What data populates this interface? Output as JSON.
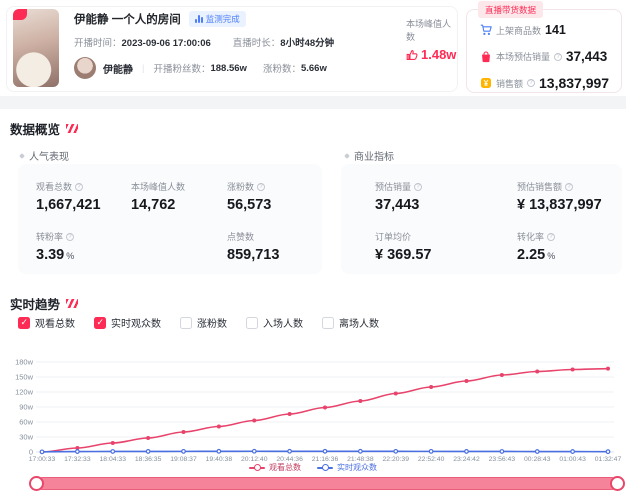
{
  "accent": {
    "red": "#fe2c55",
    "blue": "#4d7ef7",
    "chart_red": "#e8436b",
    "chart_blue": "#4a6fe0",
    "slider_pink": "#f5839a"
  },
  "header": {
    "title": "伊能静 一个人的房间",
    "monitor_badge": "监测完成",
    "start_label": "开播时间：",
    "start_value": "2023-09-06 17:00:06",
    "duration_label": "直播时长：",
    "duration_value": "8小时48分钟",
    "anchor_name": "伊能静",
    "separator": "|",
    "fans_label": "开播粉丝数：",
    "fans_value": "188.56w",
    "fans_gain_label": "涨粉数：",
    "fans_gain_value": "5.66w",
    "peak_label": "本场峰值人数",
    "peak_value": "1.48w"
  },
  "commerce": {
    "badge": "直播带货数据",
    "rows": [
      {
        "icon": "cart-icon",
        "label": "上架商品数",
        "value": "141"
      },
      {
        "icon": "bag-icon",
        "label": "本场预估销量",
        "value": "37,443"
      },
      {
        "icon": "money-icon",
        "label": "销售额",
        "value": "13,837,997"
      }
    ]
  },
  "overview": {
    "title": "数据概览",
    "popularity": {
      "subtitle": "人气表现",
      "stats": [
        {
          "label": "观看总数",
          "value": "1,667,421"
        },
        {
          "label": "本场峰值人数",
          "value": "14,762"
        },
        {
          "label": "涨粉数",
          "value": "56,573"
        },
        {
          "label": "转粉率",
          "value": "3.39",
          "suffix": "%"
        },
        {
          "label": "点赞数",
          "value": "859,713"
        }
      ]
    },
    "business": {
      "subtitle": "商业指标",
      "stats": [
        {
          "label": "预估销量",
          "value": "37,443"
        },
        {
          "label": "预估销售额",
          "value": "¥ 13,837,997"
        },
        {
          "label": "订单均价",
          "value": "¥ 369.57"
        },
        {
          "label": "转化率",
          "value": "2.25",
          "suffix": "%"
        }
      ]
    }
  },
  "trend": {
    "title": "实时趋势",
    "checkboxes": [
      {
        "label": "观看总数",
        "checked": true
      },
      {
        "label": "实时观众数",
        "checked": true
      },
      {
        "label": "涨粉数",
        "checked": false
      },
      {
        "label": "入场人数",
        "checked": false
      },
      {
        "label": "离场人数",
        "checked": false
      }
    ]
  },
  "chart_data": {
    "type": "line",
    "x": [
      "17:00:33",
      "17:32:33",
      "18:04:33",
      "18:36:35",
      "19:08:37",
      "19:40:38",
      "20:12:40",
      "20:44:36",
      "21:16:36",
      "21:48:38",
      "22:20:39",
      "22:52:40",
      "23:24:42",
      "23:56:43",
      "00:28:43",
      "01:00:43",
      "01:32:47"
    ],
    "series": [
      {
        "name": "观看总数",
        "color": "#e8436b",
        "unit": "w",
        "values": [
          0.05,
          8,
          18,
          28,
          40,
          51,
          63,
          76,
          89,
          102,
          117,
          130,
          142,
          154,
          161,
          165,
          166.7
        ]
      },
      {
        "name": "实时观众数",
        "color": "#4a6fe0",
        "unit": "w",
        "values": [
          0.3,
          0.9,
          1.05,
          1.15,
          1.25,
          1.35,
          1.48,
          1.45,
          1.4,
          1.35,
          1.3,
          1.25,
          1.15,
          1.05,
          0.95,
          0.85,
          0.6
        ]
      }
    ],
    "ylim": [
      0,
      180
    ],
    "yticks": [
      180,
      150,
      120,
      90,
      60,
      30,
      0
    ],
    "ytick_labels": [
      "180w",
      "150w",
      "120w",
      "90w",
      "60w",
      "30w",
      "0"
    ],
    "grid": true,
    "legend": [
      "观看总数",
      "实时观众数"
    ],
    "legend_position": "bottom"
  }
}
